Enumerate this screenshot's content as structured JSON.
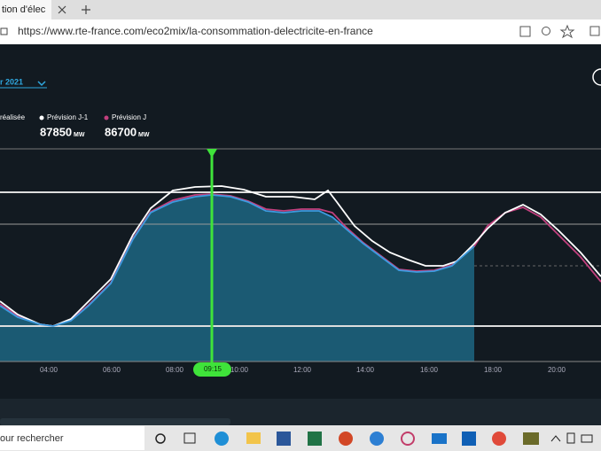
{
  "browser": {
    "tab_title": "tion d'élec",
    "url": "https://www.rte-france.com/eco2mix/la-consommation-delectricite-en-france"
  },
  "page": {
    "period": "r 2021",
    "legend": [
      {
        "label": "réalisée"
      },
      {
        "label": "Prévision J-1",
        "value": "87850",
        "unit": "MW"
      },
      {
        "label": "Prévision J",
        "value": "86700",
        "unit": "MW"
      }
    ],
    "x_labels": [
      "04:00",
      "06:00",
      "08:00",
      "10:00",
      "12:00",
      "14:00",
      "16:00",
      "18:00",
      "20:00"
    ],
    "cursor": "09:15"
  },
  "taskbar": {
    "search": "our rechercher"
  }
}
